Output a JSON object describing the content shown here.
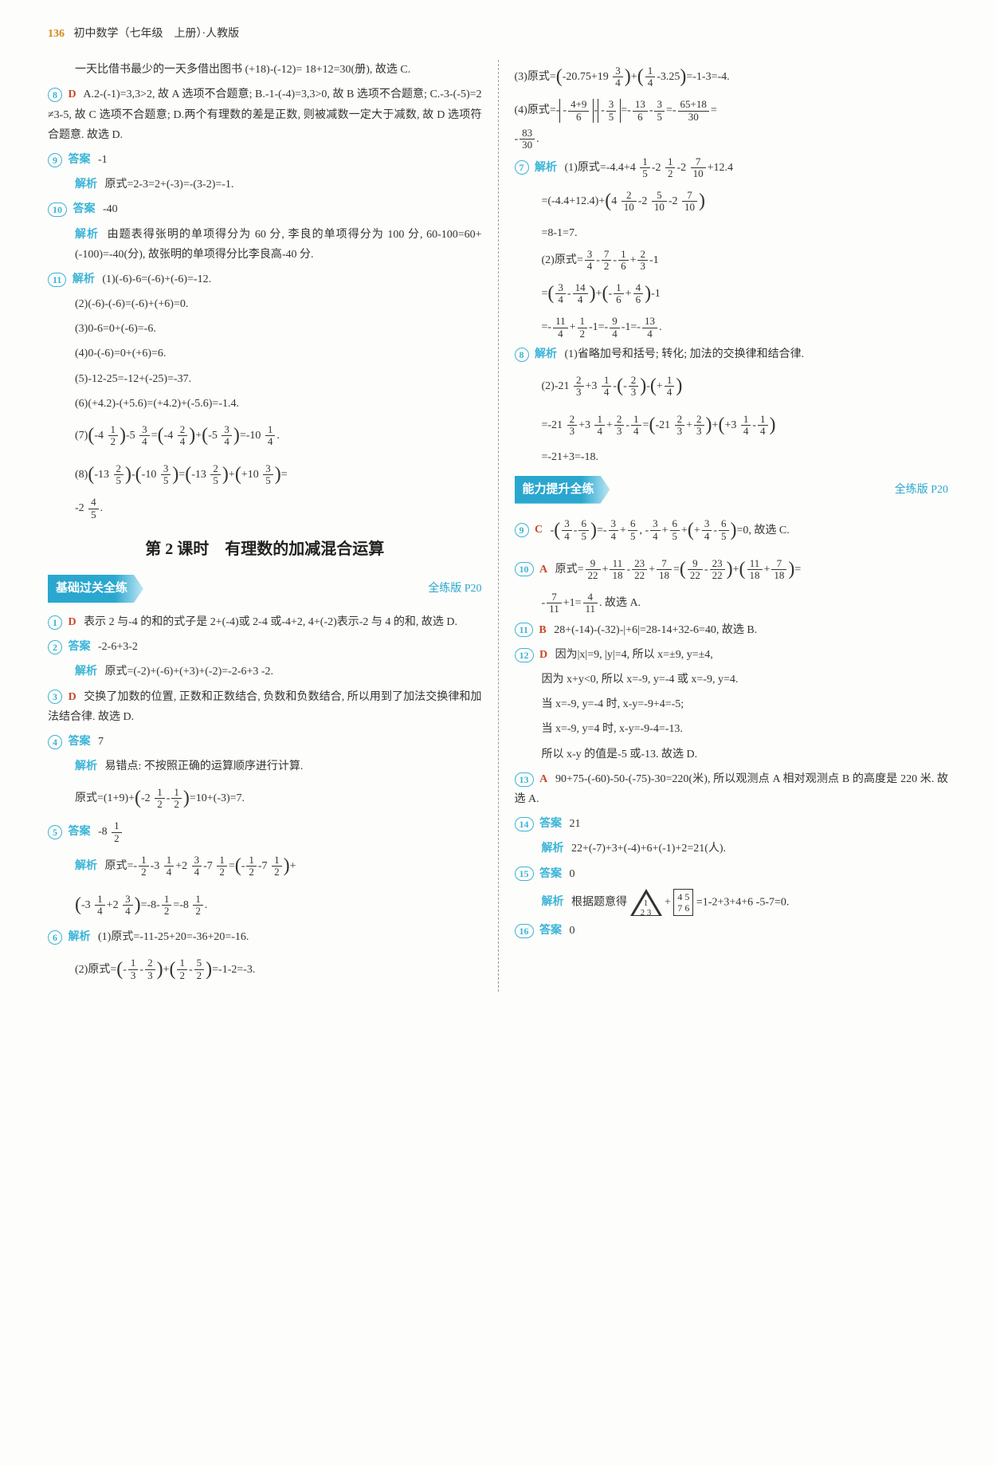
{
  "header": {
    "pageNum": "136",
    "title": "初中数学（七年级　上册）·人教版"
  },
  "left": {
    "intro": "一天比借书最少的一天多借出图书 (+18)-(-12)= 18+12=30(册), 故选 C.",
    "q8": {
      "num": "8",
      "letter": "D",
      "text": "A.2-(-1)=3,3>2, 故 A 选项不合题意; B.-1-(-4)=3,3>0, 故 B 选项不合题意; C.-3-(-5)=2 ≠3-5, 故 C 选项不合题意; D.两个有理数的差是正数, 则被减数一定大于减数, 故 D 选项符合题意. 故选 D."
    },
    "q9": {
      "num": "9",
      "ansLabel": "答案",
      "ans": "-1",
      "expLabel": "解析",
      "exp": "原式=2-3=2+(-3)=-(3-2)=-1."
    },
    "q10": {
      "num": "10",
      "ansLabel": "答案",
      "ans": "-40",
      "expLabel": "解析",
      "exp": "由题表得张明的单项得分为 60 分, 李良的单项得分为 100 分, 60-100=60+(-100)=-40(分), 故张明的单项得分比李良高-40 分."
    },
    "q11": {
      "num": "11",
      "label": "解析",
      "l1": "(1)(-6)-6=(-6)+(-6)=-12.",
      "l2": "(2)(-6)-(-6)=(-6)+(+6)=0.",
      "l3": "(3)0-6=0+(-6)=-6.",
      "l4": "(4)0-(-6)=0+(+6)=6.",
      "l5": "(5)-12-25=-12+(-25)=-37.",
      "l6": "(6)(+4.2)-(+5.6)=(+4.2)+(-5.6)=-1.4."
    },
    "sectionTitle": "第 2 课时　有理数的加减混合运算",
    "banner1": {
      "tag": "基础过关全练",
      "ref": "全练版 P20"
    },
    "q1": {
      "num": "1",
      "letter": "D",
      "text": "表示 2 与-4 的和的式子是 2+(-4)或 2-4 或-4+2, 4+(-2)表示-2 与 4 的和, 故选 D."
    },
    "q2": {
      "num": "2",
      "ansLabel": "答案",
      "ans": "-2-6+3-2",
      "expLabel": "解析",
      "exp": "原式=(-2)+(-6)+(+3)+(-2)=-2-6+3 -2."
    },
    "q3": {
      "num": "3",
      "letter": "D",
      "text": "交换了加数的位置, 正数和正数结合, 负数和负数结合, 所以用到了加法交换律和加法结合律. 故选 D."
    },
    "q4": {
      "num": "4",
      "ansLabel": "答案",
      "ans": "7",
      "expLabel": "解析",
      "exp1": "易错点: 不按照正确的运算顺序进行计算."
    },
    "q5": {
      "num": "5",
      "ansLabel": "答案",
      "expLabel": "解析"
    },
    "q6": {
      "num": "6",
      "label": "解析",
      "l1": "(1)原式=-11-25+20=-36+20=-16."
    }
  },
  "right": {
    "q7": {
      "num": "7",
      "label": "解析"
    },
    "q8r": {
      "num": "8",
      "label": "解析",
      "text": "(1)省略加号和括号; 转化; 加法的交换律和结合律."
    },
    "banner2": {
      "tag": "能力提升全练",
      "ref": "全练版 P20"
    },
    "q9r": {
      "num": "9",
      "letter": "C",
      "tail": "=0, 故选 C."
    },
    "q10r": {
      "num": "10",
      "letter": "A",
      "pre": "原式=",
      "tail": ". 故选 A."
    },
    "q11r": {
      "num": "11",
      "letter": "B",
      "text": "28+(-14)-(-32)-|+6|=28-14+32-6=40, 故选 B."
    },
    "q12r": {
      "num": "12",
      "letter": "D",
      "l1": "因为|x|=9, |y|=4, 所以 x=±9, y=±4,",
      "l2": "因为 x+y<0, 所以 x=-9, y=-4 或 x=-9, y=4.",
      "l3": "当 x=-9, y=-4 时, x-y=-9+4=-5;",
      "l4": "当 x=-9, y=4 时, x-y=-9-4=-13.",
      "l5": "所以 x-y 的值是-5 或-13. 故选 D."
    },
    "q13r": {
      "num": "13",
      "letter": "A",
      "text": "90+75-(-60)-50-(-75)-30=220(米), 所以观测点 A 相对观测点 B 的高度是 220 米. 故选 A."
    },
    "q14r": {
      "num": "14",
      "ansLabel": "答案",
      "ans": "21",
      "expLabel": "解析",
      "exp": "22+(-7)+3+(-4)+6+(-1)+2=21(人)."
    },
    "q15r": {
      "num": "15",
      "ansLabel": "答案",
      "ans": "0",
      "expLabel": "解析",
      "expPre": "根据题意得",
      "expTail": "=1-2+3+4+6 -5-7=0.",
      "tri1": "1",
      "tri23": "2 3",
      "sq": "4 5\n7 6"
    },
    "q16r": {
      "num": "16",
      "ansLabel": "答案",
      "ans": "0"
    }
  }
}
